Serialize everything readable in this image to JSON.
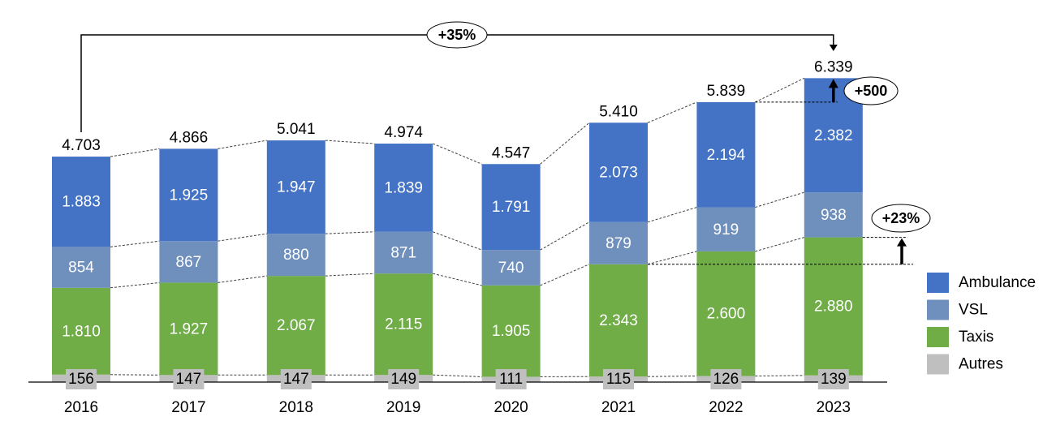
{
  "chart_data": {
    "type": "bar",
    "stacked": true,
    "title": "",
    "xlabel": "",
    "ylabel": "",
    "categories": [
      "2016",
      "2017",
      "2018",
      "2019",
      "2020",
      "2021",
      "2022",
      "2023"
    ],
    "series": [
      {
        "name": "Autres",
        "color": "#bfbfbf",
        "values": [
          156,
          147,
          147,
          149,
          111,
          115,
          126,
          139
        ],
        "labels": [
          "156",
          "147",
          "147",
          "149",
          "111",
          "115",
          "126",
          "139"
        ]
      },
      {
        "name": "Taxis",
        "color": "#70ad47",
        "values": [
          1810,
          1927,
          2067,
          2115,
          1905,
          2343,
          2600,
          2880
        ],
        "labels": [
          "1.810",
          "1.927",
          "2.067",
          "2.115",
          "1.905",
          "2.343",
          "2.600",
          "2.880"
        ]
      },
      {
        "name": "VSL",
        "color": "#6f8fbc",
        "values": [
          854,
          867,
          880,
          871,
          740,
          879,
          919,
          938
        ],
        "labels": [
          "854",
          "867",
          "880",
          "871",
          "740",
          "879",
          "919",
          "938"
        ]
      },
      {
        "name": "Ambulance",
        "color": "#4472c4",
        "values": [
          1883,
          1925,
          1947,
          1839,
          1791,
          2073,
          2194,
          2382
        ],
        "labels": [
          "1.883",
          "1.925",
          "1.947",
          "1.839",
          "1.791",
          "2.073",
          "2.194",
          "2.382"
        ]
      }
    ],
    "totals": [
      4703,
      4866,
      5041,
      4974,
      4547,
      5410,
      5839,
      6339
    ],
    "total_labels": [
      "4.703",
      "4.866",
      "5.041",
      "4.974",
      "4.547",
      "5.410",
      "5.839",
      "6.339"
    ],
    "legend": {
      "position": "right",
      "entries": [
        "Ambulance",
        "VSL",
        "Taxis",
        "Autres"
      ]
    },
    "ylim": [
      0,
      6500
    ],
    "grid": false,
    "annotations": [
      {
        "text": "+35%",
        "type": "bracket",
        "from": "2016",
        "to": "2023",
        "description": "growth of total 2016 to 2023"
      },
      {
        "text": "+500",
        "type": "arrow",
        "category": "2023",
        "description": "increase of total 2022 to 2023"
      },
      {
        "text": "+23%",
        "type": "arrow",
        "category": "2023",
        "description": "increase of Taxis 2021 to 2023"
      }
    ]
  }
}
